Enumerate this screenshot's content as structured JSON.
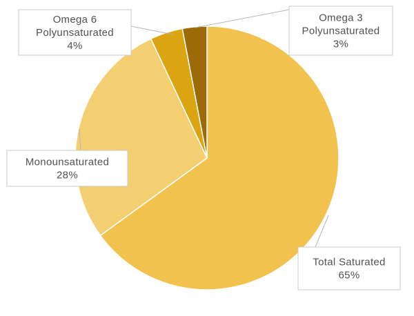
{
  "chart_data": {
    "type": "pie",
    "title": "",
    "slices": [
      {
        "label_lines": [
          "Total Saturated"
        ],
        "value": 65,
        "display": "65%",
        "color": "#F1C34E"
      },
      {
        "label_lines": [
          "Monounsaturated"
        ],
        "value": 28,
        "display": "28%",
        "color": "#F4CF72"
      },
      {
        "label_lines": [
          "Omega 6",
          "Polyunsaturated"
        ],
        "value": 4,
        "display": "4%",
        "color": "#DBA411"
      },
      {
        "label_lines": [
          "Omega 3",
          "Polyunsaturated"
        ],
        "value": 3,
        "display": "3%",
        "color": "#9C6A08"
      }
    ],
    "legend": "none",
    "data_labels": "callouts"
  }
}
